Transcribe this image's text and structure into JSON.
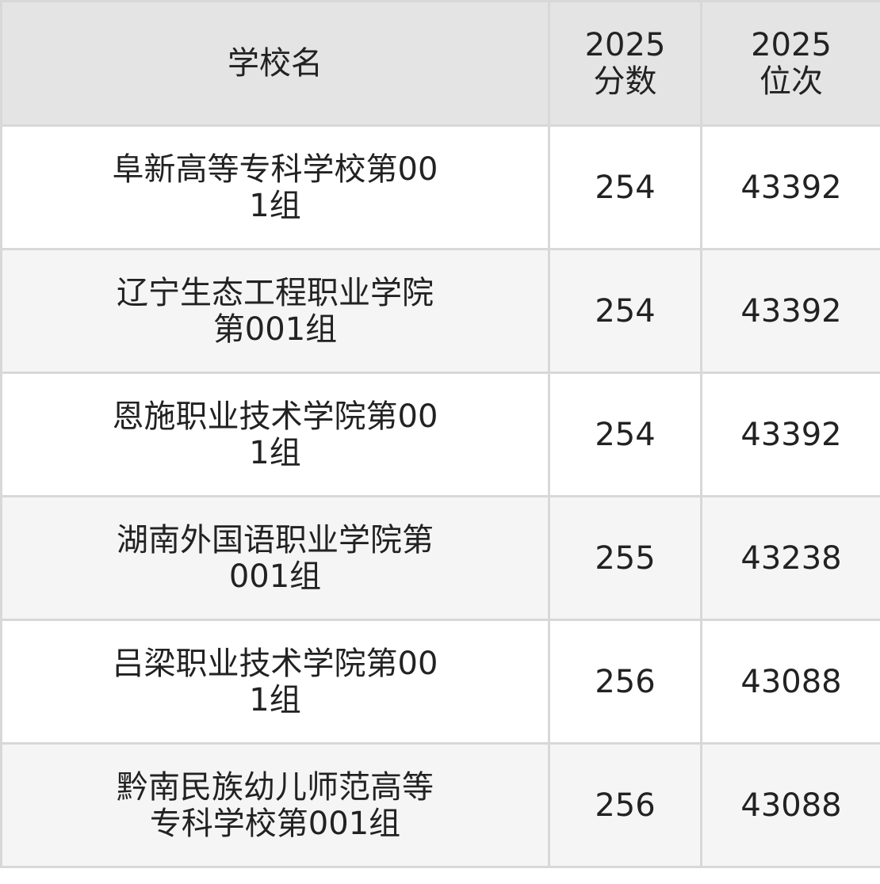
{
  "header": {
    "school": "学校名",
    "score": "2025分数",
    "rank": "2025位次"
  },
  "rows": [
    {
      "school": "阜新高等专科学校第001组",
      "score": "254",
      "rank": "43392"
    },
    {
      "school": "辽宁生态工程职业学院第001组",
      "score": "254",
      "rank": "43392"
    },
    {
      "school": "恩施职业技术学院第001组",
      "score": "254",
      "rank": "43392"
    },
    {
      "school": "湖南外国语职业学院第001组",
      "score": "255",
      "rank": "43238"
    },
    {
      "school": "吕梁职业技术学院第001组",
      "score": "256",
      "rank": "43088"
    },
    {
      "school": "黔南民族幼儿师范高等专科学校第001组",
      "score": "256",
      "rank": "43088"
    }
  ]
}
